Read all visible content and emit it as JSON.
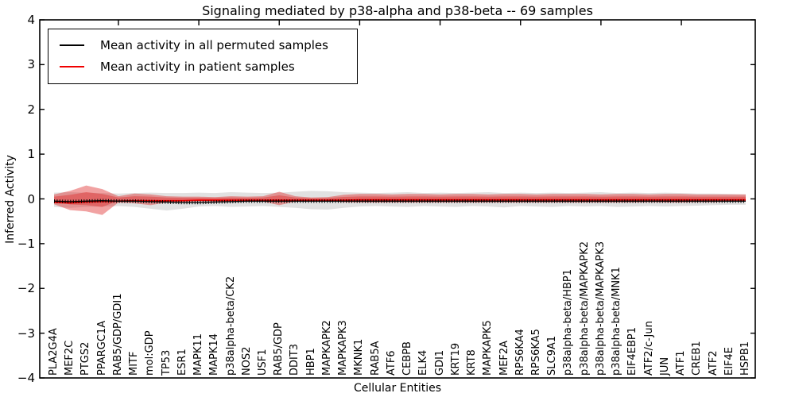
{
  "chart_data": {
    "type": "line",
    "title": "Signaling mediated by p38-alpha and p38-beta -- 69 samples",
    "xlabel": "Cellular Entities",
    "ylabel": "Inferred Activity",
    "ylim": [
      -4,
      4
    ],
    "yticks": [
      "4",
      "3",
      "2",
      "1",
      "0",
      "−1",
      "−2",
      "−3",
      "−4"
    ],
    "ytick_values": [
      4,
      3,
      2,
      1,
      0,
      -1,
      -2,
      -3,
      -4
    ],
    "top_tick_x_indices": [
      4,
      9,
      14,
      19,
      24,
      29,
      34,
      39
    ],
    "grid": "off",
    "legend_position": "upper-left",
    "categories": [
      "PLA2G4A",
      "MEF2C",
      "PTGS2",
      "PPARGC1A",
      "RAB5/GDP/GDI1",
      "MITF",
      "mol:GDP",
      "TP53",
      "ESR1",
      "MAPK11",
      "MAPK14",
      "p38alpha-beta/CK2",
      "NOS2",
      "USF1",
      "RAB5/GDP",
      "DDIT3",
      "HBP1",
      "MAPKAPK2",
      "MAPKAPK3",
      "MKNK1",
      "RAB5A",
      "ATF6",
      "CEBPB",
      "ELK4",
      "GDI1",
      "KRT19",
      "KRT8",
      "MAPKAPK5",
      "MEF2A",
      "RPS6KA4",
      "RPS6KA5",
      "SLC9A1",
      "p38alpha-beta/HBP1",
      "p38alpha-beta/MAPKAPK2",
      "p38alpha-beta/MAPKAPK3",
      "p38alpha-beta/MNK1",
      "EIF4EBP1",
      "ATF2/c-Jun",
      "JUN",
      "ATF1",
      "CREB1",
      "ATF2",
      "EIF4E",
      "HSPB1"
    ],
    "series": [
      {
        "name": "Mean activity in all permuted samples",
        "color": "#000000",
        "band_color": "#888888",
        "band_opacity": 0.25,
        "values": [
          -0.05,
          -0.06,
          -0.05,
          -0.04,
          -0.05,
          -0.05,
          -0.06,
          -0.07,
          -0.08,
          -0.08,
          -0.07,
          -0.06,
          -0.05,
          -0.05,
          -0.05,
          -0.05,
          -0.05,
          -0.05,
          -0.05,
          -0.05,
          -0.05,
          -0.05,
          -0.05,
          -0.05,
          -0.05,
          -0.05,
          -0.05,
          -0.05,
          -0.05,
          -0.05,
          -0.05,
          -0.05,
          -0.05,
          -0.05,
          -0.05,
          -0.05,
          -0.05,
          -0.05,
          -0.05,
          -0.05,
          -0.05,
          -0.05,
          -0.05,
          -0.05
        ],
        "band_upper": [
          0.14,
          0.15,
          0.14,
          0.13,
          0.12,
          0.13,
          0.14,
          0.13,
          0.13,
          0.14,
          0.13,
          0.15,
          0.14,
          0.13,
          0.14,
          0.16,
          0.18,
          0.17,
          0.15,
          0.14,
          0.13,
          0.14,
          0.15,
          0.13,
          0.14,
          0.13,
          0.14,
          0.15,
          0.13,
          0.14,
          0.13,
          0.14,
          0.13,
          0.14,
          0.15,
          0.13,
          0.14,
          0.13,
          0.14,
          0.13,
          0.12,
          0.12,
          0.11,
          0.1
        ],
        "band_lower": [
          -0.18,
          -0.2,
          -0.18,
          -0.17,
          -0.16,
          -0.18,
          -0.22,
          -0.26,
          -0.22,
          -0.17,
          -0.16,
          -0.18,
          -0.17,
          -0.16,
          -0.18,
          -0.2,
          -0.23,
          -0.24,
          -0.2,
          -0.17,
          -0.16,
          -0.17,
          -0.18,
          -0.16,
          -0.17,
          -0.18,
          -0.16,
          -0.17,
          -0.19,
          -0.16,
          -0.17,
          -0.18,
          -0.16,
          -0.17,
          -0.16,
          -0.18,
          -0.17,
          -0.16,
          -0.17,
          -0.16,
          -0.15,
          -0.14,
          -0.13,
          -0.13
        ]
      },
      {
        "name": "Mean activity in patient samples",
        "color": "#f00000",
        "band_color": "#e03030",
        "band_opacity": 0.45,
        "values": [
          -0.08,
          -0.09,
          -0.07,
          -0.06,
          -0.05,
          -0.04,
          -0.04,
          -0.04,
          -0.04,
          -0.03,
          -0.03,
          -0.03,
          -0.03,
          -0.03,
          -0.03,
          -0.03,
          -0.03,
          -0.03,
          -0.03,
          -0.02,
          -0.02,
          -0.02,
          -0.02,
          -0.02,
          -0.02,
          -0.02,
          -0.02,
          -0.02,
          -0.02,
          -0.02,
          -0.02,
          -0.02,
          -0.02,
          -0.02,
          -0.02,
          -0.02,
          -0.02,
          -0.02,
          -0.02,
          -0.02,
          -0.02,
          -0.02,
          -0.02,
          -0.02
        ],
        "band_upper": [
          0.1,
          0.18,
          0.3,
          0.22,
          0.06,
          0.12,
          0.1,
          0.06,
          0.05,
          0.05,
          0.04,
          0.06,
          0.05,
          0.06,
          0.16,
          0.06,
          0.03,
          0.04,
          0.09,
          0.11,
          0.11,
          0.1,
          0.11,
          0.11,
          0.1,
          0.11,
          0.11,
          0.1,
          0.11,
          0.11,
          0.1,
          0.11,
          0.11,
          0.11,
          0.1,
          0.11,
          0.11,
          0.1,
          0.11,
          0.11,
          0.1,
          0.1,
          0.1,
          0.1
        ],
        "band_lower": [
          -0.12,
          -0.25,
          -0.28,
          -0.36,
          -0.08,
          -0.1,
          -0.14,
          -0.08,
          -0.06,
          -0.05,
          -0.05,
          -0.06,
          -0.05,
          -0.06,
          -0.14,
          -0.06,
          -0.03,
          -0.04,
          -0.07,
          -0.08,
          -0.08,
          -0.08,
          -0.08,
          -0.08,
          -0.08,
          -0.08,
          -0.08,
          -0.08,
          -0.08,
          -0.08,
          -0.08,
          -0.08,
          -0.08,
          -0.08,
          -0.08,
          -0.08,
          -0.08,
          -0.07,
          -0.08,
          -0.08,
          -0.07,
          -0.07,
          -0.06,
          -0.06
        ]
      }
    ],
    "legend": {
      "entries": [
        {
          "label": "Mean activity in all permuted samples",
          "color": "#000000"
        },
        {
          "label": "Mean activity in patient samples",
          "color": "#f00000"
        }
      ]
    }
  }
}
